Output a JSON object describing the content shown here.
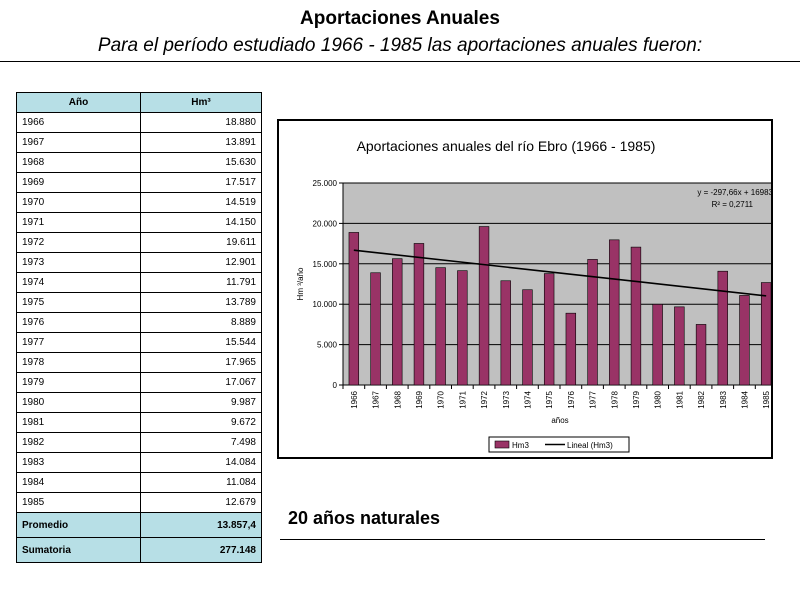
{
  "header": {
    "title": "Aportaciones Anuales",
    "subtitle": "Para el período estudiado 1966 - 1985 las aportaciones anuales fueron:"
  },
  "table": {
    "headers": [
      "Año",
      "Hm³"
    ],
    "rows": [
      {
        "year": "1966",
        "value": "18.880"
      },
      {
        "year": "1967",
        "value": "13.891"
      },
      {
        "year": "1968",
        "value": "15.630"
      },
      {
        "year": "1969",
        "value": "17.517"
      },
      {
        "year": "1970",
        "value": "14.519"
      },
      {
        "year": "1971",
        "value": "14.150"
      },
      {
        "year": "1972",
        "value": "19.611"
      },
      {
        "year": "1973",
        "value": "12.901"
      },
      {
        "year": "1974",
        "value": "11.791"
      },
      {
        "year": "1975",
        "value": "13.789"
      },
      {
        "year": "1976",
        "value": "8.889"
      },
      {
        "year": "1977",
        "value": "15.544"
      },
      {
        "year": "1978",
        "value": "17.965"
      },
      {
        "year": "1979",
        "value": "17.067"
      },
      {
        "year": "1980",
        "value": "9.987"
      },
      {
        "year": "1981",
        "value": "9.672"
      },
      {
        "year": "1982",
        "value": "7.498"
      },
      {
        "year": "1983",
        "value": "14.084"
      },
      {
        "year": "1984",
        "value": "11.084"
      },
      {
        "year": "1985",
        "value": "12.679"
      }
    ],
    "summary": [
      {
        "label": "Promedio",
        "value": "13.857,4"
      },
      {
        "label": "Sumatoria",
        "value": "277.148"
      }
    ]
  },
  "footnote": "20 años naturales",
  "chart_data": {
    "type": "bar",
    "title": "Aportaciones anuales del río Ebro (1966 - 1985)",
    "xlabel": "años",
    "ylabel": "Hm ³/año",
    "categories": [
      "1966",
      "1967",
      "1968",
      "1969",
      "1970",
      "1971",
      "1972",
      "1973",
      "1974",
      "1975",
      "1976",
      "1977",
      "1978",
      "1979",
      "1980",
      "1981",
      "1982",
      "1983",
      "1984",
      "1985"
    ],
    "series": [
      {
        "name": "Hm3",
        "values": [
          18880,
          13891,
          15630,
          17517,
          14519,
          14150,
          19611,
          12901,
          11791,
          13789,
          8889,
          15544,
          17965,
          17067,
          9987,
          9672,
          7498,
          14084,
          11084,
          12679
        ],
        "color": "#993366"
      }
    ],
    "trendline": {
      "name": "Lineal (Hm3)",
      "slope": -297.66,
      "intercept": 16983,
      "color": "#000000",
      "equation": "y = -297,66x + 16983",
      "r_squared": "R² = 0,2711"
    },
    "ylim": [
      0,
      25000
    ],
    "yticks": [
      {
        "value": 0,
        "label": "0"
      },
      {
        "value": 5000,
        "label": "5.000"
      },
      {
        "value": 10000,
        "label": "10.000"
      },
      {
        "value": 15000,
        "label": "15.000"
      },
      {
        "value": 20000,
        "label": "20.000"
      },
      {
        "value": 25000,
        "label": "25.000"
      }
    ],
    "grid": true,
    "plot_background": "#c0c0c0",
    "legend_position": "bottom"
  }
}
